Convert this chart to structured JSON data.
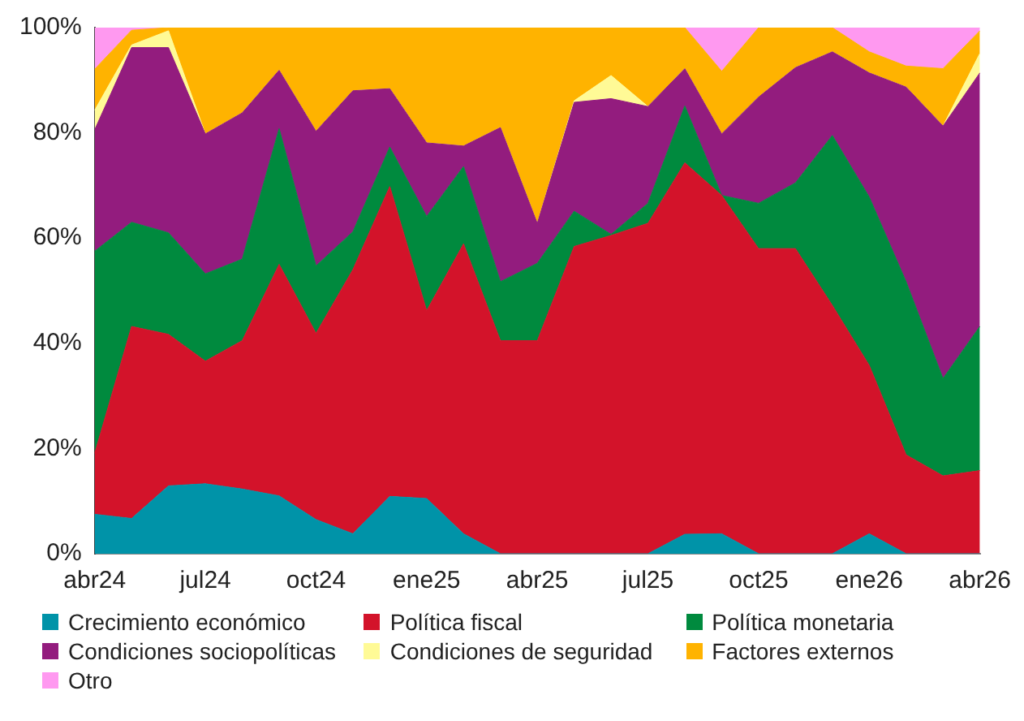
{
  "chart_data": {
    "type": "area",
    "stacked": true,
    "categories": [
      "abr24",
      null,
      null,
      "jul24",
      null,
      null,
      "oct24",
      null,
      null,
      "ene25",
      null,
      null,
      "abr25",
      null,
      null,
      "jul25",
      null,
      null,
      "oct25",
      null,
      null,
      "ene26",
      null,
      null,
      "abr26"
    ],
    "ylim": [
      0,
      100
    ],
    "yticks": [
      {
        "value": 0,
        "label": "0%"
      },
      {
        "value": 20,
        "label": "20%"
      },
      {
        "value": 40,
        "label": "40%"
      },
      {
        "value": 60,
        "label": "60%"
      },
      {
        "value": 80,
        "label": "80%"
      },
      {
        "value": 100,
        "label": "100%"
      }
    ],
    "grid": false,
    "legend": "bottom",
    "series": [
      {
        "name": "Crecimiento económico",
        "color": "#0093a8",
        "values": [
          7.5,
          6.7,
          12.9,
          13.3,
          12.3,
          11,
          6.5,
          3.8,
          10.9,
          10.5,
          3.8,
          0,
          0,
          0,
          0,
          0,
          3.7,
          3.8,
          0,
          0,
          0,
          3.8,
          0,
          0,
          0
        ]
      },
      {
        "name": "Política fiscal",
        "color": "#d3132a",
        "values": [
          11.6,
          36.5,
          28.8,
          23.3,
          28.2,
          44,
          35.4,
          50.2,
          58.9,
          35.7,
          55.1,
          40.5,
          40.5,
          58.4,
          60.5,
          62.8,
          70.6,
          64.3,
          58,
          58,
          47.2,
          32,
          18.8,
          14.8,
          15.8
        ]
      },
      {
        "name": "Política monetaria",
        "color": "#008a3e",
        "values": [
          38.4,
          19.8,
          19.3,
          16.6,
          15.5,
          25.8,
          12.8,
          7.2,
          7.5,
          17.9,
          14.7,
          11.2,
          14.7,
          6.7,
          0.2,
          3.8,
          10.8,
          0,
          8.6,
          12.5,
          32.3,
          32,
          32.9,
          18.5,
          27.4
        ]
      },
      {
        "name": "Condiciones sociopolíticas",
        "color": "#931c7e",
        "values": [
          23.1,
          33.2,
          35.2,
          26.6,
          27.8,
          11.1,
          25.6,
          26.8,
          11.1,
          14,
          3.9,
          29.3,
          7.6,
          20.7,
          25.8,
          18.4,
          7.1,
          11.7,
          20.2,
          21.9,
          15.9,
          23.6,
          37,
          48,
          48.2
        ]
      },
      {
        "name": "Condiciones de seguridad",
        "color": "#fffa96",
        "values": [
          3.7,
          0.5,
          3.2,
          0,
          0,
          0,
          0,
          0,
          0,
          0,
          0,
          0,
          0,
          0.3,
          4.4,
          0,
          0,
          0,
          0,
          0,
          0,
          0,
          0,
          0,
          3.7
        ]
      },
      {
        "name": "Factores externos",
        "color": "#ffb300",
        "values": [
          7.8,
          2.8,
          0.6,
          20.2,
          16.2,
          8.1,
          19.7,
          12,
          11.6,
          21.9,
          22.5,
          19,
          37.2,
          13.9,
          9.1,
          15,
          7.8,
          11.9,
          13.2,
          7.6,
          4.6,
          4,
          4,
          10.9,
          4.3
        ]
      },
      {
        "name": "Otro",
        "color": "#ff99f0",
        "values": [
          7.9,
          0.5,
          0,
          0,
          0,
          0,
          0,
          0,
          0,
          0,
          0,
          0,
          0,
          0,
          0,
          0,
          0,
          8.3,
          0,
          0,
          0,
          4.6,
          7.3,
          7.8,
          0.6
        ]
      }
    ]
  }
}
